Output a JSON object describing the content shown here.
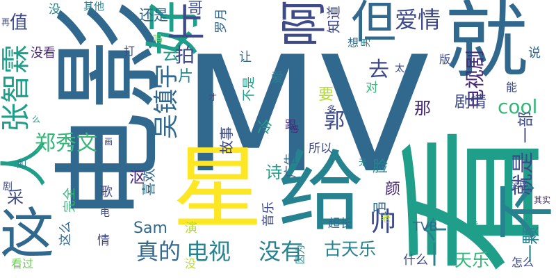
{
  "palette": {
    "purple": "#482878",
    "indigo": "#3e4a89",
    "blue": "#31688e",
    "teal": "#26828e",
    "green": "#1f9e89",
    "lightgreen": "#35b779",
    "lime": "#6ece58",
    "yellow": "#b5de2b",
    "bright": "#fde725"
  },
  "words": [
    {
      "text": "MV",
      "color": "blue"
    },
    {
      "text": "就",
      "color": "blue"
    },
    {
      "text": "电影",
      "color": "blue"
    },
    {
      "text": "星",
      "color": "bright"
    },
    {
      "text": "给",
      "color": "teal"
    },
    {
      "text": "看",
      "color": "green"
    },
    {
      "text": "好",
      "color": "green"
    },
    {
      "text": "但",
      "color": "blue"
    },
    {
      "text": "啊",
      "color": "indigo"
    },
    {
      "text": "上",
      "color": "indigo"
    },
    {
      "text": "不",
      "color": "teal"
    },
    {
      "text": "这",
      "color": "blue"
    },
    {
      "text": "人",
      "color": "green"
    },
    {
      "text": "张智霖",
      "color": "green"
    },
    {
      "text": "吴镇宇",
      "color": "blue"
    },
    {
      "text": "爱情",
      "color": "indigo"
    },
    {
      "text": "电视剧",
      "color": "purple"
    },
    {
      "text": "郑秀文",
      "color": "lightgreen"
    },
    {
      "text": "cool",
      "color": "lightgreen"
    },
    {
      "text": "电视",
      "color": "teal"
    },
    {
      "text": "没有",
      "color": "teal"
    },
    {
      "text": "真的",
      "color": "blue"
    },
    {
      "text": "古天乐",
      "color": "teal"
    },
    {
      "text": "帅",
      "color": "indigo"
    },
    {
      "text": "天乐",
      "color": "lightgreen"
    },
    {
      "text": "一个",
      "color": "teal"
    },
    {
      "text": "就是",
      "color": "indigo"
    },
    {
      "text": "一颗",
      "color": "teal"
    },
    {
      "text": "一部",
      "color": "indigo"
    },
    {
      "text": "剧情",
      "color": "indigo"
    },
    {
      "text": "那",
      "color": "purple"
    },
    {
      "text": "郭",
      "color": "indigo"
    },
    {
      "text": "去",
      "color": "indigo"
    },
    {
      "text": "拍",
      "color": "indigo"
    },
    {
      "text": "值",
      "color": "indigo"
    },
    {
      "text": "还是",
      "color": "blue"
    },
    {
      "text": "没看",
      "color": "purple"
    },
    {
      "text": "没",
      "color": "teal"
    },
    {
      "text": "哥",
      "color": "indigo"
    },
    {
      "text": "其他",
      "color": "teal"
    },
    {
      "text": "罗月",
      "color": "blue"
    },
    {
      "text": "知道",
      "color": "indigo"
    },
    {
      "text": "想",
      "color": "blue"
    },
    {
      "text": "版",
      "color": "indigo"
    },
    {
      "text": "说",
      "color": "blue"
    },
    {
      "text": "能",
      "color": "indigo"
    },
    {
      "text": "太",
      "color": "indigo"
    },
    {
      "text": "男",
      "color": "teal"
    },
    {
      "text": "爱",
      "color": "teal"
    },
    {
      "text": "打",
      "color": "indigo"
    },
    {
      "text": "片",
      "color": "teal"
    },
    {
      "text": "云",
      "color": "green"
    },
    {
      "text": "让",
      "color": "blue"
    },
    {
      "text": "不是",
      "color": "green"
    },
    {
      "text": "对",
      "color": "lightgreen"
    },
    {
      "text": "要",
      "color": "yellow"
    },
    {
      "text": "多",
      "color": "indigo"
    },
    {
      "text": "跟",
      "color": "purple"
    },
    {
      "text": "故事",
      "color": "indigo"
    },
    {
      "text": "冷",
      "color": "green"
    },
    {
      "text": "诗",
      "color": "green"
    },
    {
      "text": "广告",
      "color": "blue"
    },
    {
      "text": "所以",
      "color": "indigo"
    },
    {
      "text": "脸",
      "color": "teal"
    },
    {
      "text": "颜",
      "color": "purple"
    },
    {
      "text": "吧",
      "color": "blue"
    },
    {
      "text": "音乐",
      "color": "indigo"
    },
    {
      "text": "喜欢",
      "color": "blue"
    },
    {
      "text": "沤",
      "color": "purple"
    },
    {
      "text": "Sam",
      "color": "blue"
    },
    {
      "text": "歌",
      "color": "indigo"
    },
    {
      "text": "完全",
      "color": "lightgreen"
    },
    {
      "text": "采",
      "color": "indigo"
    },
    {
      "text": "这么",
      "color": "blue"
    },
    {
      "text": "情",
      "color": "indigo"
    },
    {
      "text": "演",
      "color": "yellow"
    },
    {
      "text": "什么",
      "color": "indigo"
    },
    {
      "text": "TVB",
      "color": "blue"
    },
    {
      "text": "超长",
      "color": "blue"
    },
    {
      "text": "老",
      "color": "yellow"
    },
    {
      "text": "因为",
      "color": "teal"
    },
    {
      "text": "怎么",
      "color": "indigo"
    },
    {
      "text": "其实",
      "color": "purple"
    },
    {
      "text": "这样",
      "color": "indigo"
    },
    {
      "text": "无",
      "color": "teal"
    },
    {
      "text": "爱",
      "color": "green"
    },
    {
      "text": "感",
      "color": "purple"
    },
    {
      "text": "才",
      "color": "indigo"
    },
    {
      "text": "如",
      "color": "teal"
    },
    {
      "text": "剧",
      "color": "indigo"
    },
    {
      "text": "画",
      "color": "indigo"
    },
    {
      "text": "再",
      "color": "indigo"
    },
    {
      "text": "吗",
      "color": "lime"
    },
    {
      "text": "么",
      "color": "green"
    },
    {
      "text": "看过",
      "color": "lime"
    },
    {
      "text": "没",
      "color": "yellow"
    },
    {
      "text": "电",
      "color": "indigo"
    }
  ]
}
